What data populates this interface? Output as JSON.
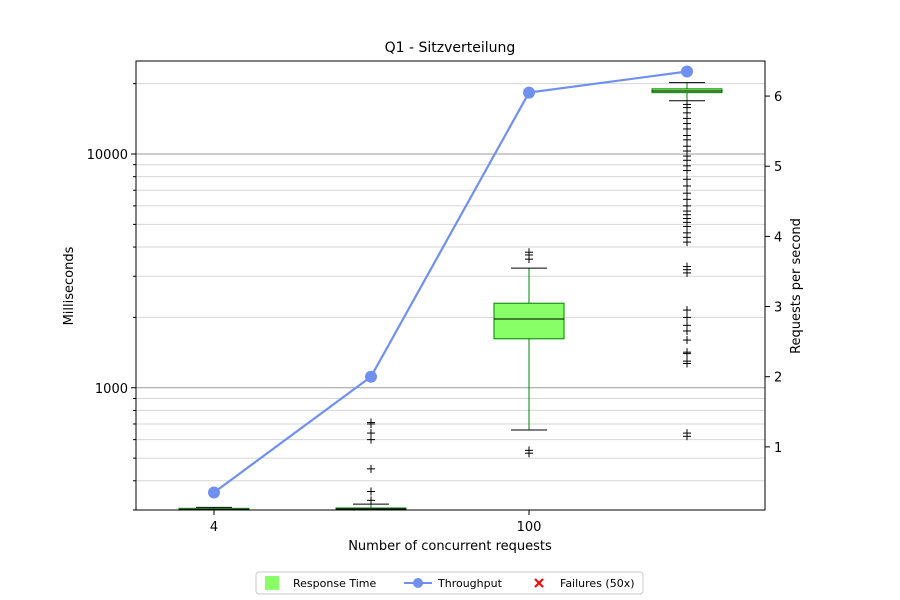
{
  "chart_data": {
    "type": "box",
    "title": "Q1 - Sitzverteilung",
    "xlabel": "Number of concurrent requests",
    "ylabel_left": "Milliseconds",
    "ylabel_right": "Requests per second",
    "x_categories": [
      "4",
      "",
      "100",
      ""
    ],
    "y_left_scale": "log",
    "y_left_ticks": [
      "1000",
      "10000"
    ],
    "y_left_range": [
      300,
      25000
    ],
    "y_right_range": [
      0.1,
      6.5
    ],
    "y_right_ticks": [
      "1",
      "2",
      "3",
      "4",
      "5",
      "6"
    ],
    "grid": "horizontal (major and minor, log scale)",
    "legend_position": "bottom-center",
    "legend": [
      {
        "label": "Response Time",
        "marker": "square",
        "color": "#88ff66"
      },
      {
        "label": "Throughput",
        "marker": "line-circle",
        "color": "#7090f0"
      },
      {
        "label": "Failures (50x)",
        "marker": "x",
        "color": "#ff0000"
      }
    ],
    "boxes": [
      {
        "category": "4",
        "whisker_low": 300,
        "q1": 300,
        "median": 302,
        "q3": 305,
        "whisker_high": 308,
        "outliers": []
      },
      {
        "category": "",
        "whisker_low": 300,
        "q1": 300,
        "median": 303,
        "q3": 306,
        "whisker_high": 318,
        "outliers": [
          330,
          360,
          450,
          600,
          640,
          700,
          710
        ]
      },
      {
        "category": "100",
        "whisker_low": 660,
        "q1": 1620,
        "median": 1970,
        "q3": 2300,
        "whisker_high": 3250,
        "outliers": [
          525,
          540,
          3550,
          3700,
          3800
        ]
      },
      {
        "category": "",
        "whisker_low": 16900,
        "q1": 18300,
        "median": 18600,
        "q3": 19000,
        "whisker_high": 20200,
        "outliers": [
          620,
          640,
          1270,
          1300,
          1400,
          1420,
          1600,
          1750,
          1850,
          2000,
          2150,
          3100,
          3200,
          3300,
          4200,
          4400,
          4600,
          4900,
          5100,
          5300,
          5500,
          5700,
          6000,
          6400,
          6800,
          7300,
          7800,
          8500,
          8900,
          9400,
          9800,
          10300,
          10800,
          11500,
          12000,
          12800,
          13500,
          14200,
          15000,
          15800,
          16300
        ]
      }
    ],
    "throughput": {
      "name": "Throughput",
      "values": [
        0.35,
        2.0,
        6.05,
        6.35
      ]
    },
    "failures": []
  }
}
